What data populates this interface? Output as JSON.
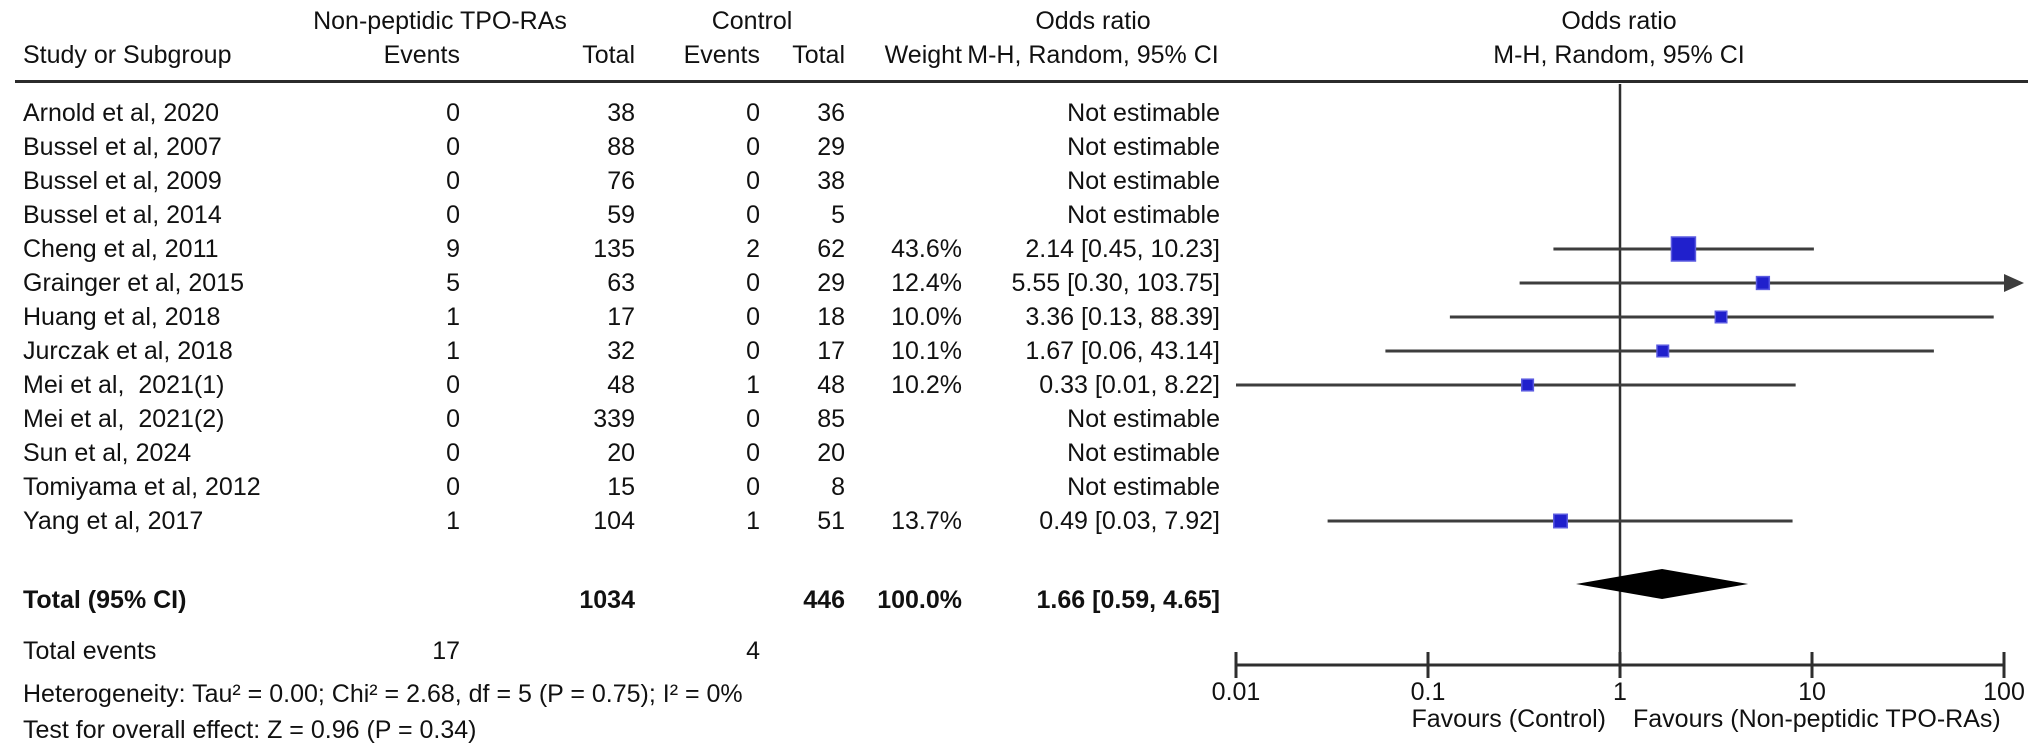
{
  "header": {
    "group1": "Non-peptidic TPO-RAs",
    "group2": "Control",
    "or_text_col": "Odds ratio",
    "or_plot_col": "Odds ratio",
    "study": "Study or Subgroup",
    "events1": "Events",
    "total1": "Total",
    "events2": "Events",
    "total2": "Total",
    "weight": "Weight",
    "method_text_col": "M-H, Random, 95% CI",
    "method_plot_col": "M-H, Random, 95% CI"
  },
  "table": {
    "rows": [
      {
        "study": "Arnold et al, 2020",
        "e1": "0",
        "t1": "38",
        "e2": "0",
        "t2": "36",
        "weight": "",
        "or": "Not estimable"
      },
      {
        "study": "Bussel et al, 2007",
        "e1": "0",
        "t1": "88",
        "e2": "0",
        "t2": "29",
        "weight": "",
        "or": "Not estimable"
      },
      {
        "study": "Bussel et al, 2009",
        "e1": "0",
        "t1": "76",
        "e2": "0",
        "t2": "38",
        "weight": "",
        "or": "Not estimable"
      },
      {
        "study": "Bussel et al, 2014",
        "e1": "0",
        "t1": "59",
        "e2": "0",
        "t2": "5",
        "weight": "",
        "or": "Not estimable"
      },
      {
        "study": "Cheng et al, 2011",
        "e1": "9",
        "t1": "135",
        "e2": "2",
        "t2": "62",
        "weight": "43.6%",
        "or": "2.14 [0.45, 10.23]"
      },
      {
        "study": "Grainger et al, 2015",
        "e1": "5",
        "t1": "63",
        "e2": "0",
        "t2": "29",
        "weight": "12.4%",
        "or": "5.55 [0.30, 103.75]"
      },
      {
        "study": "Huang et al, 2018",
        "e1": "1",
        "t1": "17",
        "e2": "0",
        "t2": "18",
        "weight": "10.0%",
        "or": "3.36 [0.13, 88.39]"
      },
      {
        "study": "Jurczak et al, 2018",
        "e1": "1",
        "t1": "32",
        "e2": "0",
        "t2": "17",
        "weight": "10.1%",
        "or": "1.67 [0.06, 43.14]"
      },
      {
        "study": "Mei et al,  2021(1)",
        "e1": "0",
        "t1": "48",
        "e2": "1",
        "t2": "48",
        "weight": "10.2%",
        "or": "0.33 [0.01, 8.22]"
      },
      {
        "study": "Mei et al,  2021(2)",
        "e1": "0",
        "t1": "339",
        "e2": "0",
        "t2": "85",
        "weight": "",
        "or": "Not estimable"
      },
      {
        "study": "Sun et al, 2024",
        "e1": "0",
        "t1": "20",
        "e2": "0",
        "t2": "20",
        "weight": "",
        "or": "Not estimable"
      },
      {
        "study": "Tomiyama et al, 2012",
        "e1": "0",
        "t1": "15",
        "e2": "0",
        "t2": "8",
        "weight": "",
        "or": "Not estimable"
      },
      {
        "study": "Yang et al, 2017",
        "e1": "1",
        "t1": "104",
        "e2": "1",
        "t2": "51",
        "weight": "13.7%",
        "or": "0.49 [0.03, 7.92]"
      }
    ],
    "total": {
      "label": "Total (95% CI)",
      "t1": "1034",
      "t2": "446",
      "weight": "100.0%",
      "or": "1.66 [0.59, 4.65]"
    },
    "total_events": {
      "label": "Total events",
      "e1": "17",
      "e2": "4"
    },
    "heterogeneity": "Heterogeneity: Tau² = 0.00; Chi² = 2.68, df = 5 (P = 0.75); I² = 0%",
    "overall_effect": "Test for overall effect: Z = 0.96 (P = 0.34)"
  },
  "axis": {
    "tick_labels": [
      "0.01",
      "0.1",
      "1",
      "10",
      "100"
    ],
    "favours_left": "Favours (Control)",
    "favours_right": "Favours (Non-peptidic TPO-RAs)"
  },
  "colors": {
    "square_fill": "#2020cc",
    "square_stroke": "#5a5ae0",
    "diamond": "#000000",
    "ci_line": "#3d3d3d",
    "axis_line": "#2e2e2e"
  },
  "chart_data": {
    "type": "scatter",
    "subtype": "forest-plot",
    "title": "Odds ratio, M-H, Random, 95% CI",
    "x_scale": "log10",
    "xlim": [
      0.01,
      100
    ],
    "x_ticks": [
      0.01,
      0.1,
      1,
      10,
      100
    ],
    "reference_line": 1,
    "studies": [
      {
        "name": "Arnold et al, 2020",
        "or": null,
        "lo": null,
        "hi": null,
        "weight_pct": null
      },
      {
        "name": "Bussel et al, 2007",
        "or": null,
        "lo": null,
        "hi": null,
        "weight_pct": null
      },
      {
        "name": "Bussel et al, 2009",
        "or": null,
        "lo": null,
        "hi": null,
        "weight_pct": null
      },
      {
        "name": "Bussel et al, 2014",
        "or": null,
        "lo": null,
        "hi": null,
        "weight_pct": null
      },
      {
        "name": "Cheng et al, 2011",
        "or": 2.14,
        "lo": 0.45,
        "hi": 10.23,
        "weight_pct": 43.6
      },
      {
        "name": "Grainger et al, 2015",
        "or": 5.55,
        "lo": 0.3,
        "hi": 103.75,
        "weight_pct": 12.4
      },
      {
        "name": "Huang et al, 2018",
        "or": 3.36,
        "lo": 0.13,
        "hi": 88.39,
        "weight_pct": 10.0
      },
      {
        "name": "Jurczak et al, 2018",
        "or": 1.67,
        "lo": 0.06,
        "hi": 43.14,
        "weight_pct": 10.1
      },
      {
        "name": "Mei et al, 2021(1)",
        "or": 0.33,
        "lo": 0.01,
        "hi": 8.22,
        "weight_pct": 10.2
      },
      {
        "name": "Mei et al, 2021(2)",
        "or": null,
        "lo": null,
        "hi": null,
        "weight_pct": null
      },
      {
        "name": "Sun et al, 2024",
        "or": null,
        "lo": null,
        "hi": null,
        "weight_pct": null
      },
      {
        "name": "Tomiyama et al, 2012",
        "or": null,
        "lo": null,
        "hi": null,
        "weight_pct": null
      },
      {
        "name": "Yang et al, 2017",
        "or": 0.49,
        "lo": 0.03,
        "hi": 7.92,
        "weight_pct": 13.7
      }
    ],
    "total": {
      "or": 1.66,
      "lo": 0.59,
      "hi": 4.65,
      "weight_pct": 100.0
    },
    "favours_left": "Favours (Control)",
    "favours_right": "Favours (Non-peptidic TPO-RAs)"
  }
}
